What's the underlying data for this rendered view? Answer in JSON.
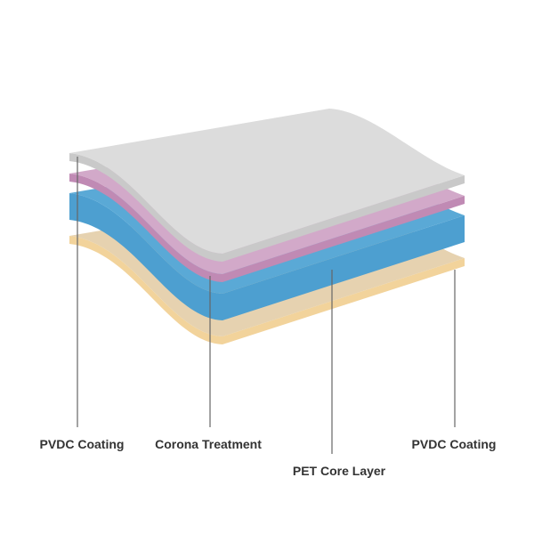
{
  "layers": [
    {
      "label": "PVDC Coating",
      "top_color": "#dcdcdc",
      "edge_color": "#c9c9c9"
    },
    {
      "label": "Corona Treatment",
      "top_color": "#d2a9c9",
      "edge_color": "#c08ab4"
    },
    {
      "label": "PET Core Layer",
      "top_color": "#5aa9d6",
      "edge_color": "#4d9fd0"
    },
    {
      "label": "PVDC Coating",
      "top_color": "#e6d2b0",
      "edge_color": "#f2d39b"
    }
  ]
}
